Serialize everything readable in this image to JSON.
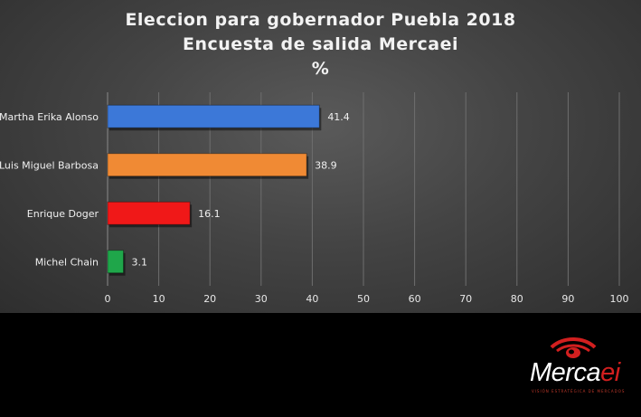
{
  "chart_data": {
    "type": "bar",
    "orientation": "horizontal",
    "title": [
      "Eleccion para gobernador Puebla 2018",
      "Encuesta de salida Mercaei",
      "%"
    ],
    "categories": [
      "Martha Erika Alonso",
      "Luis Miguel Barbosa",
      "Enrique Doger",
      "Michel Chain"
    ],
    "values": [
      41.4,
      38.9,
      16.1,
      3.1
    ],
    "value_labels": [
      "41.4",
      "38.9",
      "16.1",
      "3.1"
    ],
    "colors": [
      "#3c78d8",
      "#f08a34",
      "#f01818",
      "#1fa64a"
    ],
    "xlim": [
      0,
      100
    ],
    "xticks": [
      "0",
      "10",
      "20",
      "30",
      "40",
      "50",
      "60",
      "70",
      "80",
      "90",
      "100"
    ],
    "grid": true
  },
  "logo": {
    "main": "Merca",
    "accent": "ei",
    "tagline": "VISIÓN ESTRATÉGICA DE MERCADOS"
  }
}
